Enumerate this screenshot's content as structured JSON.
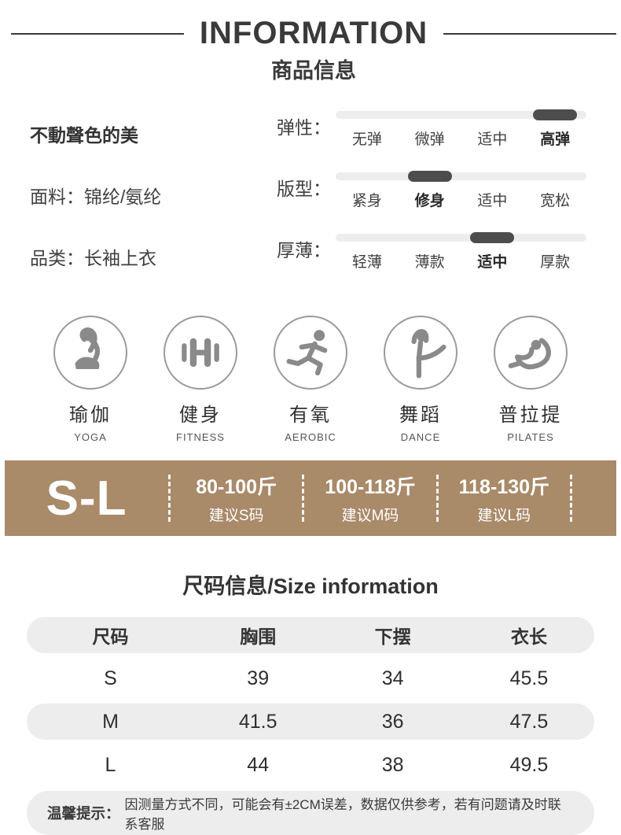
{
  "header": {
    "title": "INFORMATION",
    "subtitle": "商品信息"
  },
  "product": {
    "tagline": "不動聲色的美",
    "fields": [
      {
        "label": "面料：",
        "value": "锦纶/氨纶"
      },
      {
        "label": "品类：",
        "value": "长袖上衣"
      }
    ]
  },
  "sliders": [
    {
      "label": "弹性：",
      "options": [
        "无弹",
        "微弹",
        "适中",
        "高弹"
      ],
      "active_index": 3
    },
    {
      "label": "版型：",
      "options": [
        "紧身",
        "修身",
        "适中",
        "宽松"
      ],
      "active_index": 1
    },
    {
      "label": "厚薄：",
      "options": [
        "轻薄",
        "薄款",
        "适中",
        "厚款"
      ],
      "active_index": 2
    }
  ],
  "activities": [
    {
      "icon": "yoga-icon",
      "name": "瑜伽",
      "en": "YOGA"
    },
    {
      "icon": "fitness-icon",
      "name": "健身",
      "en": "FITNESS"
    },
    {
      "icon": "aerobic-icon",
      "name": "有氧",
      "en": "AEROBIC"
    },
    {
      "icon": "dance-icon",
      "name": "舞蹈",
      "en": "DANCE"
    },
    {
      "icon": "pilates-icon",
      "name": "普拉提",
      "en": "PILATES"
    }
  ],
  "size_banner": {
    "range": "S-L",
    "recommendations": [
      {
        "weight": "80-100斤",
        "suggestion": "建议S码"
      },
      {
        "weight": "100-118斤",
        "suggestion": "建议M码"
      },
      {
        "weight": "118-130斤",
        "suggestion": "建议L码"
      }
    ]
  },
  "size_table": {
    "title": "尺码信息/Size information",
    "headers": [
      "尺码",
      "胸围",
      "下摆",
      "衣长"
    ],
    "rows": [
      [
        "S",
        "39",
        "34",
        "45.5"
      ],
      [
        "M",
        "41.5",
        "36",
        "47.5"
      ],
      [
        "L",
        "44",
        "38",
        "49.5"
      ]
    ]
  },
  "notice": {
    "label": "温馨提示：",
    "text": "因测量方式不同，可能会有±2CM误差，数据仅供参考，若有问题请及时联系客服"
  },
  "colors": {
    "accent_brown": "#a98a69",
    "slider_track": "#ededed",
    "slider_pill": "#4d4d4d",
    "row_gray": "#ededed",
    "text_dark": "#3c3c3c",
    "icon_gray": "#8a8a8a"
  }
}
